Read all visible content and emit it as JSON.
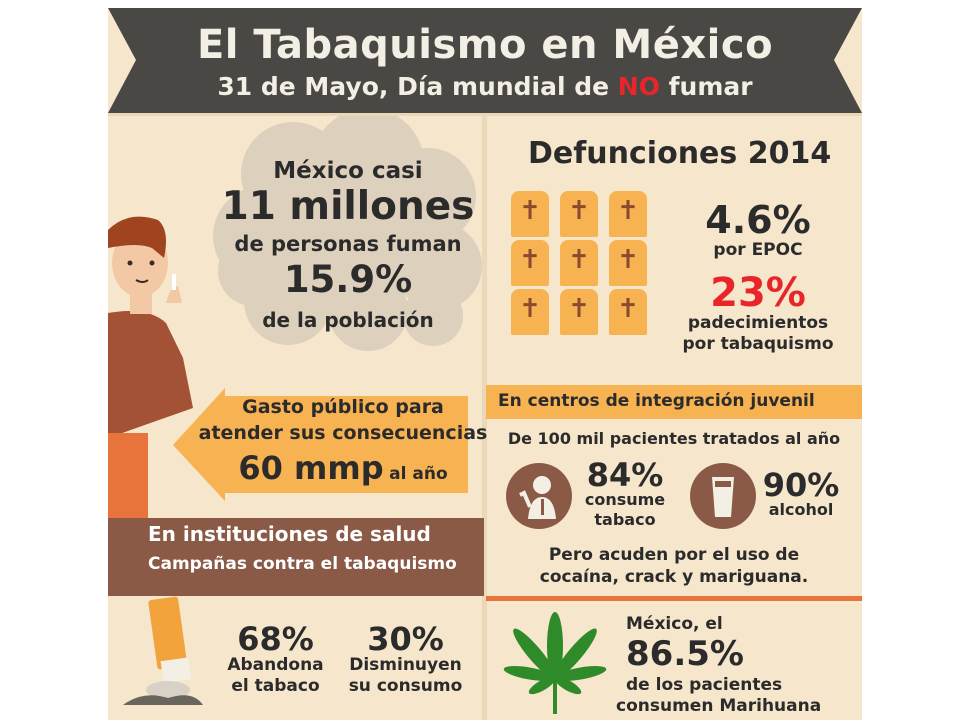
{
  "header": {
    "title": "El Tabaquismo en México",
    "subtitle_pre": "31 de Mayo, Día mundial de ",
    "subtitle_no": "NO",
    "subtitle_post": " fumar"
  },
  "smokers": {
    "line1": "México casi",
    "line2": "11 millones",
    "line3": "de personas fuman",
    "line4": "15.9%",
    "line5": "de la población"
  },
  "spending": {
    "line1": "Gasto público para",
    "line2": "atender sus consecuencias",
    "amount": "60 mmp",
    "period": "al año"
  },
  "health": {
    "title": "En instituciones de salud",
    "subtitle": "Campañas contra el tabaquismo",
    "stat1_value": "68%",
    "stat1_l1": "Abandona",
    "stat1_l2": "el tabaco",
    "stat2_value": "30%",
    "stat2_l1": "Disminuyen",
    "stat2_l2": "su consumo"
  },
  "deaths": {
    "title": "Defunciones 2014",
    "epoc_value": "4.6%",
    "epoc_label": "por EPOC",
    "tobacco_value": "23%",
    "tobacco_l1": "padecimientos",
    "tobacco_l2": "por tabaquismo",
    "cross": "✝"
  },
  "youth": {
    "title": "En centros de integración juvenil",
    "intro": "De 100 mil pacientes tratados al año",
    "tobacco_value": "84%",
    "tobacco_l1": "consume",
    "tobacco_l2": "tabaco",
    "alcohol_value": "90%",
    "alcohol_l1": "alcohol",
    "note_l1": "Pero acuden por el uso de",
    "note_l2": "cocaína, crack y mariguana."
  },
  "marijuana": {
    "l1": "México, el",
    "value": "86.5%",
    "l2": "de los pacientes",
    "l3": "consumen Marihuana"
  },
  "colors": {
    "banner": "#4a4845",
    "background": "#f5e6cc",
    "accent_orange": "#f7b252",
    "brown": "#8b5a46",
    "red": "#e8262a",
    "green": "#2f8a2a"
  }
}
